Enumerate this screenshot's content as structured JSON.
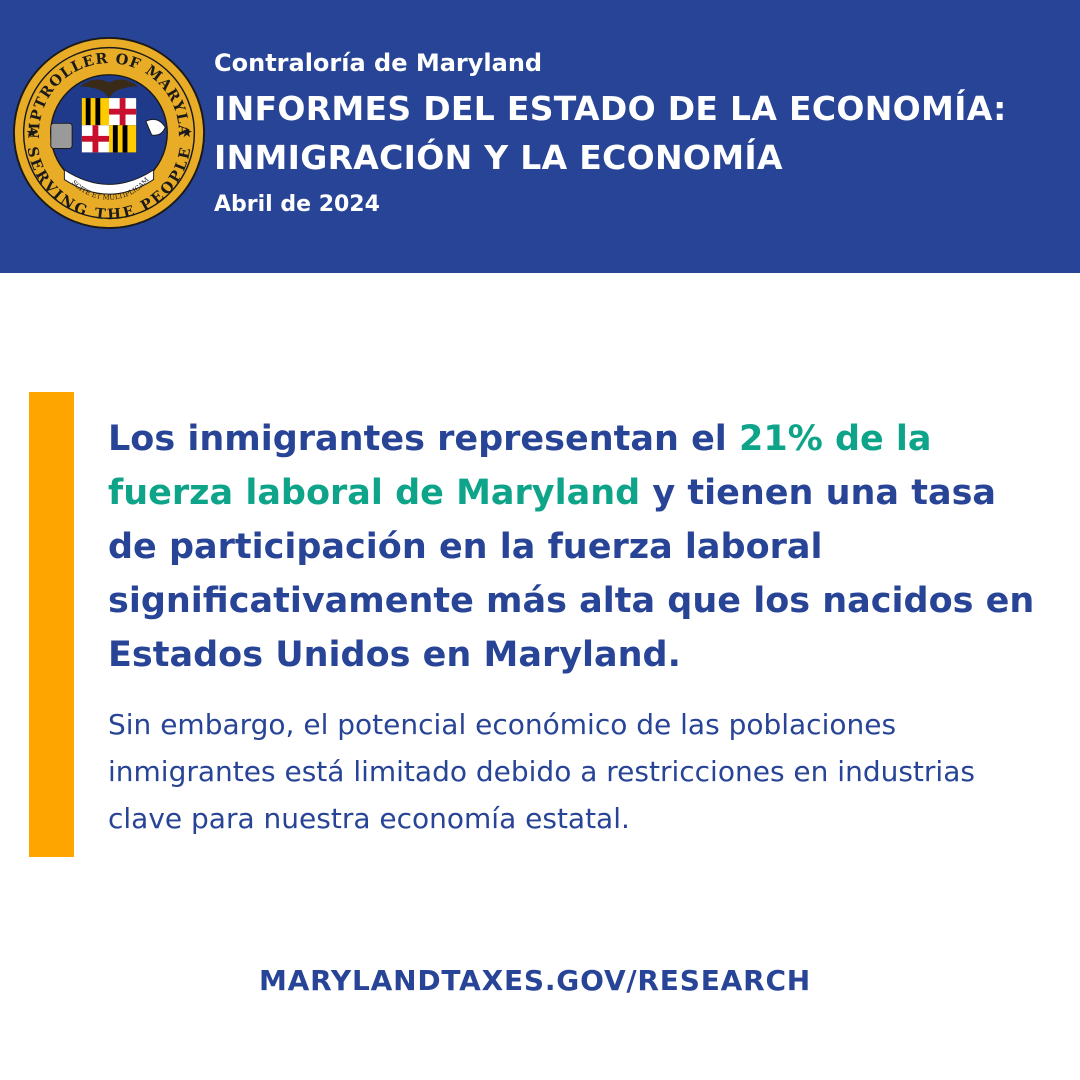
{
  "header": {
    "organization": "Contraloría de Maryland",
    "title_line1": "INFORMES DEL ESTADO DE LA ECONOMÍA:",
    "title_line2": "INMIGRACIÓN Y LA ECONOMÍA",
    "date": "Abril de 2024"
  },
  "seal": {
    "outer_text_top": "COMPTROLLER OF MARYLAND",
    "outer_text_bottom": "SERVING THE PEOPLE",
    "motto": "CRESCITE ET MULTIPLICAMINI"
  },
  "main": {
    "headline_part1": "Los inmigrantes representan el ",
    "headline_highlight": "21% de la fuerza laboral de Maryland",
    "headline_part2": " y tienen una tasa de participación en la fuerza laboral significativamente más alta que los nacidos en Estados Unidos en Maryland.",
    "body": "Sin embargo, el potencial económico de las poblaciones inmigrantes está limitado debido a restricciones en industrias clave para nuestra economía estatal."
  },
  "footer": {
    "url": "MARYLANDTAXES.GOV/RESEARCH"
  },
  "colors": {
    "header_bg": "#284496",
    "accent_bar": "#ffa500",
    "highlight": "#0ea48a",
    "text_primary": "#284496",
    "seal_gold": "#e9ac26"
  }
}
